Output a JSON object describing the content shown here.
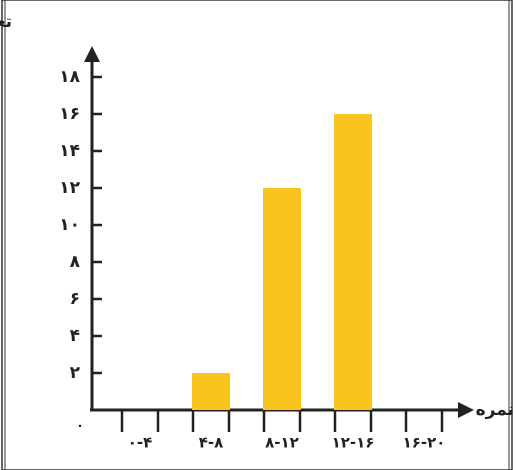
{
  "chart_data": {
    "type": "bar",
    "y_label": "تعداد دانش‌آموزان",
    "x_label": "نمره",
    "categories": [
      "۰-۴",
      "۴-۸",
      "۸-۱۲",
      "۱۲-۱۶",
      "۱۶-۲۰"
    ],
    "values": [
      0,
      2,
      12,
      16,
      0
    ],
    "color": "#f7c51e",
    "ylim": [
      0,
      19
    ],
    "yticks": [
      {
        "value": 0,
        "label": "۰"
      },
      {
        "value": 2,
        "label": "۲"
      },
      {
        "value": 4,
        "label": "۴"
      },
      {
        "value": 6,
        "label": "۶"
      },
      {
        "value": 8,
        "label": "۸"
      },
      {
        "value": 10,
        "label": "۱۰"
      },
      {
        "value": 12,
        "label": "۱۲"
      },
      {
        "value": 14,
        "label": "۱۴"
      },
      {
        "value": 16,
        "label": "۱۶"
      },
      {
        "value": 18,
        "label": "۱۸"
      }
    ]
  }
}
